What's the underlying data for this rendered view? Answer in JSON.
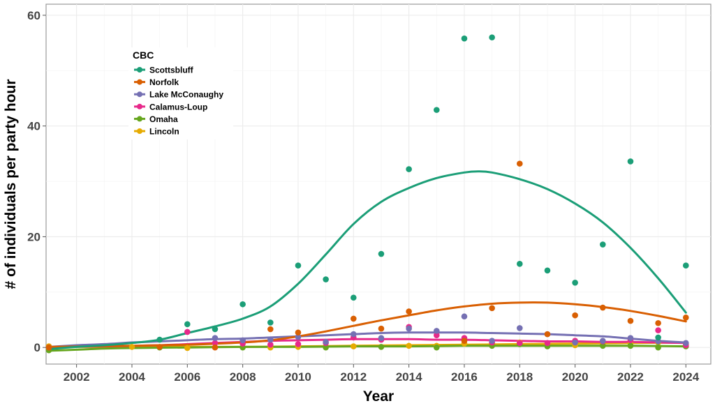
{
  "chart_data": {
    "type": "scatter",
    "xlabel": "Year",
    "ylabel": "# of individuals per party hour",
    "xlim": [
      2000.9,
      2024.9
    ],
    "ylim": [
      -3,
      62
    ],
    "x_ticks": [
      2002,
      2004,
      2006,
      2008,
      2010,
      2012,
      2014,
      2016,
      2018,
      2020,
      2022,
      2024
    ],
    "y_ticks": [
      0,
      20,
      40,
      60
    ],
    "grid": true,
    "legend": {
      "title": "CBC",
      "position": "top-left inside"
    },
    "series": [
      {
        "name": "Scottsbluff",
        "color": "#1b9e77",
        "points": [
          [
            2005,
            1.4
          ],
          [
            2006,
            4.2
          ],
          [
            2007,
            3.3
          ],
          [
            2008,
            7.8
          ],
          [
            2009,
            4.5
          ],
          [
            2010,
            14.8
          ],
          [
            2011,
            12.3
          ],
          [
            2012,
            9.0
          ],
          [
            2013,
            16.9
          ],
          [
            2014,
            32.2
          ],
          [
            2015,
            42.9
          ],
          [
            2016,
            55.8
          ],
          [
            2017,
            56.0
          ],
          [
            2018,
            15.1
          ],
          [
            2019,
            13.9
          ],
          [
            2020,
            11.7
          ],
          [
            2021,
            18.6
          ],
          [
            2022,
            33.6
          ],
          [
            2023,
            1.8
          ],
          [
            2024,
            14.8
          ]
        ],
        "smooth": [
          [
            2001,
            -0.3
          ],
          [
            2002,
            0.1
          ],
          [
            2003,
            0.4
          ],
          [
            2004,
            0.8
          ],
          [
            2005,
            1.4
          ],
          [
            2006,
            2.6
          ],
          [
            2007,
            3.8
          ],
          [
            2008,
            5.2
          ],
          [
            2009,
            7.4
          ],
          [
            2010,
            11.5
          ],
          [
            2011,
            16.8
          ],
          [
            2012,
            22.3
          ],
          [
            2013,
            26.3
          ],
          [
            2014,
            28.8
          ],
          [
            2015,
            30.6
          ],
          [
            2016,
            31.6
          ],
          [
            2016.5,
            31.8
          ],
          [
            2017,
            31.6
          ],
          [
            2018,
            30.4
          ],
          [
            2019,
            28.6
          ],
          [
            2020,
            26.0
          ],
          [
            2021,
            22.6
          ],
          [
            2022,
            18.0
          ],
          [
            2023,
            12.5
          ],
          [
            2024,
            6.3
          ]
        ]
      },
      {
        "name": "Norfolk",
        "color": "#d95f02",
        "points": [
          [
            2001,
            0.0
          ],
          [
            2005,
            0.1
          ],
          [
            2007,
            0.0
          ],
          [
            2009,
            3.3
          ],
          [
            2010,
            2.7
          ],
          [
            2012,
            5.2
          ],
          [
            2013,
            3.4
          ],
          [
            2014,
            6.5
          ],
          [
            2016,
            1.2
          ],
          [
            2017,
            7.1
          ],
          [
            2018,
            33.2
          ],
          [
            2019,
            2.4
          ],
          [
            2020,
            5.8
          ],
          [
            2021,
            7.2
          ],
          [
            2022,
            4.8
          ],
          [
            2023,
            4.4
          ],
          [
            2024,
            5.4
          ]
        ],
        "smooth": [
          [
            2001,
            0.1
          ],
          [
            2004,
            0.3
          ],
          [
            2006,
            0.5
          ],
          [
            2008,
            0.9
          ],
          [
            2009,
            1.3
          ],
          [
            2010,
            2.0
          ],
          [
            2011,
            2.9
          ],
          [
            2012,
            3.9
          ],
          [
            2013,
            4.9
          ],
          [
            2014,
            5.8
          ],
          [
            2015,
            6.7
          ],
          [
            2016,
            7.4
          ],
          [
            2017,
            7.9
          ],
          [
            2018,
            8.1
          ],
          [
            2019,
            8.1
          ],
          [
            2020,
            7.8
          ],
          [
            2021,
            7.3
          ],
          [
            2022,
            6.6
          ],
          [
            2023,
            5.7
          ],
          [
            2024,
            4.7
          ]
        ]
      },
      {
        "name": "Lake McConaughy",
        "color": "#7570b3",
        "points": [
          [
            2007,
            1.7
          ],
          [
            2008,
            1.3
          ],
          [
            2009,
            1.4
          ],
          [
            2010,
            1.9
          ],
          [
            2011,
            1.0
          ],
          [
            2012,
            2.4
          ],
          [
            2013,
            1.7
          ],
          [
            2014,
            3.4
          ],
          [
            2015,
            3.0
          ],
          [
            2016,
            5.6
          ],
          [
            2017,
            1.2
          ],
          [
            2018,
            3.5
          ],
          [
            2019,
            2.4
          ],
          [
            2020,
            0.9
          ],
          [
            2021,
            1.2
          ],
          [
            2022,
            1.7
          ],
          [
            2023,
            1.1
          ],
          [
            2024,
            0.8
          ]
        ],
        "smooth": [
          [
            2001,
            0.1
          ],
          [
            2002,
            0.4
          ],
          [
            2003,
            0.6
          ],
          [
            2004,
            0.9
          ],
          [
            2005,
            1.1
          ],
          [
            2006,
            1.3
          ],
          [
            2007,
            1.5
          ],
          [
            2008,
            1.6
          ],
          [
            2009,
            1.8
          ],
          [
            2010,
            2.0
          ],
          [
            2011,
            2.2
          ],
          [
            2012,
            2.4
          ],
          [
            2013,
            2.6
          ],
          [
            2014,
            2.7
          ],
          [
            2015,
            2.7
          ],
          [
            2016,
            2.7
          ],
          [
            2017,
            2.6
          ],
          [
            2018,
            2.5
          ],
          [
            2019,
            2.4
          ],
          [
            2020,
            2.2
          ],
          [
            2021,
            2.0
          ],
          [
            2022,
            1.6
          ],
          [
            2023,
            1.2
          ],
          [
            2024,
            0.9
          ]
        ]
      },
      {
        "name": "Calamus-Loup",
        "color": "#e7298a",
        "points": [
          [
            2001,
            0.0
          ],
          [
            2006,
            2.8
          ],
          [
            2007,
            0.8
          ],
          [
            2008,
            0.7
          ],
          [
            2009,
            0.5
          ],
          [
            2010,
            0.6
          ],
          [
            2011,
            0.8
          ],
          [
            2012,
            1.8
          ],
          [
            2013,
            1.4
          ],
          [
            2014,
            3.7
          ],
          [
            2015,
            2.2
          ],
          [
            2016,
            1.7
          ],
          [
            2017,
            0.9
          ],
          [
            2018,
            0.8
          ],
          [
            2019,
            0.8
          ],
          [
            2020,
            1.2
          ],
          [
            2021,
            1.1
          ],
          [
            2022,
            1.3
          ],
          [
            2023,
            3.1
          ],
          [
            2024,
            0.4
          ]
        ],
        "smooth": [
          [
            2001,
            0.1
          ],
          [
            2003,
            0.2
          ],
          [
            2005,
            0.4
          ],
          [
            2006,
            0.6
          ],
          [
            2007,
            0.8
          ],
          [
            2008,
            1.0
          ],
          [
            2009,
            1.2
          ],
          [
            2010,
            1.3
          ],
          [
            2011,
            1.4
          ],
          [
            2012,
            1.5
          ],
          [
            2013,
            1.5
          ],
          [
            2014,
            1.5
          ],
          [
            2015,
            1.4
          ],
          [
            2016,
            1.4
          ],
          [
            2017,
            1.3
          ],
          [
            2018,
            1.2
          ],
          [
            2019,
            1.1
          ],
          [
            2020,
            1.1
          ],
          [
            2021,
            1.0
          ],
          [
            2022,
            1.0
          ],
          [
            2023,
            0.9
          ],
          [
            2024,
            0.8
          ]
        ]
      },
      {
        "name": "Omaha",
        "color": "#66a61e",
        "points": [
          [
            2001,
            -0.5
          ],
          [
            2005,
            0.0
          ],
          [
            2008,
            0.0
          ],
          [
            2011,
            0.0
          ],
          [
            2013,
            0.1
          ],
          [
            2015,
            0.0
          ],
          [
            2017,
            0.3
          ],
          [
            2018,
            0.6
          ],
          [
            2019,
            0.2
          ],
          [
            2021,
            0.3
          ],
          [
            2022,
            0.3
          ],
          [
            2023,
            0.0
          ],
          [
            2024,
            0.2
          ]
        ],
        "smooth": [
          [
            2001,
            -0.6
          ],
          [
            2002,
            -0.4
          ],
          [
            2003,
            -0.2
          ],
          [
            2004,
            -0.1
          ],
          [
            2006,
            0.0
          ],
          [
            2008,
            0.1
          ],
          [
            2010,
            0.1
          ],
          [
            2012,
            0.2
          ],
          [
            2014,
            0.2
          ],
          [
            2016,
            0.3
          ],
          [
            2018,
            0.3
          ],
          [
            2020,
            0.3
          ],
          [
            2022,
            0.3
          ],
          [
            2024,
            0.2
          ]
        ]
      },
      {
        "name": "Lincoln",
        "color": "#e6ab02",
        "points": [
          [
            2001,
            0.2
          ],
          [
            2004,
            0.1
          ],
          [
            2006,
            -0.1
          ],
          [
            2009,
            0.0
          ],
          [
            2010,
            0.1
          ],
          [
            2012,
            0.2
          ],
          [
            2014,
            0.3
          ],
          [
            2015,
            0.3
          ],
          [
            2016,
            0.7
          ],
          [
            2017,
            0.8
          ],
          [
            2018,
            0.9
          ],
          [
            2019,
            0.5
          ],
          [
            2020,
            0.4
          ],
          [
            2021,
            0.6
          ],
          [
            2022,
            0.7
          ],
          [
            2023,
            0.9
          ],
          [
            2024,
            0.6
          ]
        ],
        "smooth": [
          [
            2001,
            0.1
          ],
          [
            2004,
            0.1
          ],
          [
            2006,
            0.1
          ],
          [
            2008,
            0.1
          ],
          [
            2010,
            0.2
          ],
          [
            2012,
            0.3
          ],
          [
            2014,
            0.4
          ],
          [
            2016,
            0.5
          ],
          [
            2018,
            0.6
          ],
          [
            2020,
            0.7
          ],
          [
            2022,
            0.8
          ],
          [
            2024,
            0.9
          ]
        ]
      }
    ]
  }
}
